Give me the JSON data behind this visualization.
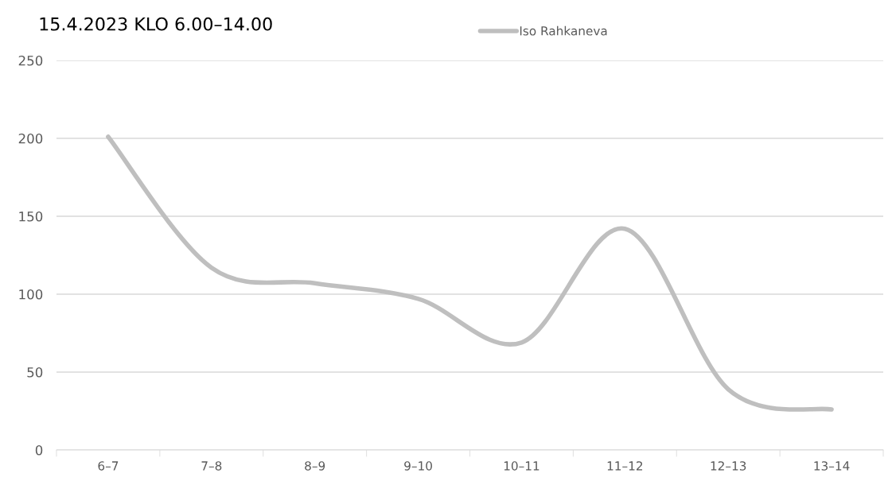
{
  "chart_data": {
    "type": "line",
    "title": "15.4.2023 KLO 6.00–14.00",
    "categories": [
      "6–7",
      "7–8",
      "8–9",
      "9–10",
      "10–11",
      "11–12",
      "12–13",
      "13–14"
    ],
    "series": [
      {
        "name": "Iso Rahkaneva",
        "color": "#bfbfbf",
        "values": [
          201,
          117,
          107,
          97,
          69,
          142,
          39,
          26
        ]
      }
    ],
    "ylim": [
      0,
      250
    ],
    "yticks": [
      0,
      50,
      100,
      150,
      200,
      250
    ],
    "grid": "y",
    "legend": "top right",
    "marker": "none",
    "line_style": "solid"
  }
}
